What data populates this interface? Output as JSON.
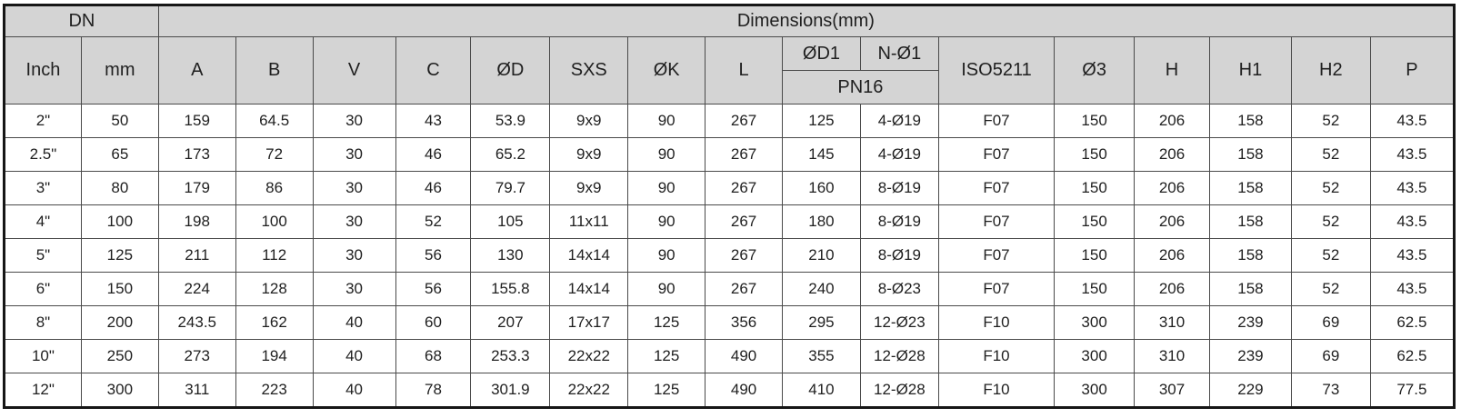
{
  "colors": {
    "header_background": "#d4d4d4",
    "grid_line": "#4a4a4a",
    "outer_border": "#161616",
    "text": "#1f1f1f",
    "cell_background": "#ffffff"
  },
  "table": {
    "header": {
      "group_dn": "DN",
      "group_dimensions": "Dimensions(mm)",
      "pn_label": "PN16",
      "columns": [
        "Inch",
        "mm",
        "A",
        "B",
        "V",
        "C",
        "ØD",
        "SXS",
        "ØK",
        "L",
        "ØD1",
        "N-Ø1",
        "ISO5211",
        "Ø3",
        "H",
        "H1",
        "H2",
        "P"
      ]
    },
    "rows": [
      [
        "2\"",
        "50",
        "159",
        "64.5",
        "30",
        "43",
        "53.9",
        "9x9",
        "90",
        "267",
        "125",
        "4-Ø19",
        "F07",
        "150",
        "206",
        "158",
        "52",
        "43.5"
      ],
      [
        "2.5\"",
        "65",
        "173",
        "72",
        "30",
        "46",
        "65.2",
        "9x9",
        "90",
        "267",
        "145",
        "4-Ø19",
        "F07",
        "150",
        "206",
        "158",
        "52",
        "43.5"
      ],
      [
        "3\"",
        "80",
        "179",
        "86",
        "30",
        "46",
        "79.7",
        "9x9",
        "90",
        "267",
        "160",
        "8-Ø19",
        "F07",
        "150",
        "206",
        "158",
        "52",
        "43.5"
      ],
      [
        "4\"",
        "100",
        "198",
        "100",
        "30",
        "52",
        "105",
        "11x11",
        "90",
        "267",
        "180",
        "8-Ø19",
        "F07",
        "150",
        "206",
        "158",
        "52",
        "43.5"
      ],
      [
        "5\"",
        "125",
        "211",
        "112",
        "30",
        "56",
        "130",
        "14x14",
        "90",
        "267",
        "210",
        "8-Ø19",
        "F07",
        "150",
        "206",
        "158",
        "52",
        "43.5"
      ],
      [
        "6\"",
        "150",
        "224",
        "128",
        "30",
        "56",
        "155.8",
        "14x14",
        "90",
        "267",
        "240",
        "8-Ø23",
        "F07",
        "150",
        "206",
        "158",
        "52",
        "43.5"
      ],
      [
        "8\"",
        "200",
        "243.5",
        "162",
        "40",
        "60",
        "207",
        "17x17",
        "125",
        "356",
        "295",
        "12-Ø23",
        "F10",
        "300",
        "310",
        "239",
        "69",
        "62.5"
      ],
      [
        "10\"",
        "250",
        "273",
        "194",
        "40",
        "68",
        "253.3",
        "22x22",
        "125",
        "490",
        "355",
        "12-Ø28",
        "F10",
        "300",
        "310",
        "239",
        "69",
        "62.5"
      ],
      [
        "12\"",
        "300",
        "311",
        "223",
        "40",
        "78",
        "301.9",
        "22x22",
        "125",
        "490",
        "410",
        "12-Ø28",
        "F10",
        "300",
        "307",
        "229",
        "73",
        "77.5"
      ]
    ]
  }
}
